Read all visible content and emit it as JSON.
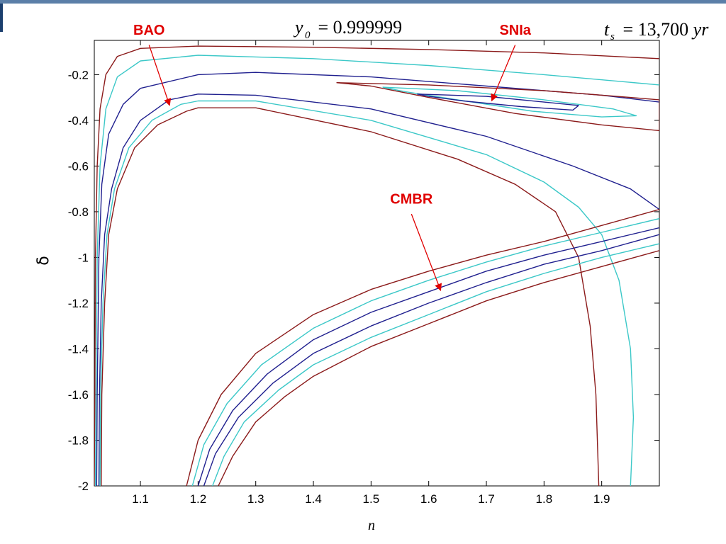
{
  "chart_data": {
    "type": "line",
    "title": "",
    "xlabel": "n",
    "ylabel": "δ",
    "xlim": [
      1.02,
      2.0
    ],
    "ylim": [
      -2.0,
      -0.05
    ],
    "x_ticks": [
      "1.1",
      "1.2",
      "1.3",
      "1.4",
      "1.5",
      "1.6",
      "1.7",
      "1.8",
      "1.9"
    ],
    "y_ticks": [
      "-0.2",
      "-0.4",
      "-0.6",
      "-0.8",
      "-1",
      "-1.2",
      "-1.4",
      "-1.6",
      "-1.8",
      "-2"
    ],
    "grid": false,
    "colors": {
      "outer": "#8b1a1a",
      "middle": "#3cc8c8",
      "inner": "#20208f",
      "annotation": "#e00000"
    },
    "header_equations": [
      {
        "var": "y",
        "sub": "0",
        "rest": " = 0.999999"
      },
      {
        "var": "t",
        "sub": "s",
        "rest": " = 13,700 ",
        "unit": "yr"
      }
    ],
    "annotations": [
      {
        "text": "BAO",
        "label_at": [
          1.115,
          -0.05
        ],
        "arrow_from": [
          1.115,
          -0.07
        ],
        "arrow_to": [
          1.15,
          -0.33
        ]
      },
      {
        "text": "SNIa",
        "label_at": [
          1.75,
          -0.05
        ],
        "arrow_from": [
          1.75,
          -0.07
        ],
        "arrow_to": [
          1.71,
          -0.31
        ]
      },
      {
        "text": "CMBR",
        "label_at": [
          1.57,
          -0.79
        ],
        "arrow_from": [
          1.57,
          -0.81
        ],
        "arrow_to": [
          1.62,
          -1.14
        ]
      }
    ],
    "series": [
      {
        "group": "BAO",
        "level": "outer",
        "points": [
          [
            1.02,
            -2.0
          ],
          [
            1.021,
            -1.6
          ],
          [
            1.022,
            -1.0
          ],
          [
            1.025,
            -0.6
          ],
          [
            1.03,
            -0.35
          ],
          [
            1.04,
            -0.2
          ],
          [
            1.06,
            -0.12
          ],
          [
            1.1,
            -0.085
          ],
          [
            1.2,
            -0.075
          ],
          [
            1.4,
            -0.08
          ],
          [
            1.6,
            -0.09
          ],
          [
            1.8,
            -0.105
          ],
          [
            2.0,
            -0.13
          ]
        ]
      },
      {
        "group": "BAO",
        "level": "middle",
        "points": [
          [
            1.022,
            -2.0
          ],
          [
            1.023,
            -1.6
          ],
          [
            1.025,
            -1.0
          ],
          [
            1.03,
            -0.6
          ],
          [
            1.04,
            -0.35
          ],
          [
            1.06,
            -0.21
          ],
          [
            1.1,
            -0.14
          ],
          [
            1.2,
            -0.115
          ],
          [
            1.4,
            -0.13
          ],
          [
            1.6,
            -0.16
          ],
          [
            1.8,
            -0.2
          ],
          [
            2.0,
            -0.245
          ]
        ]
      },
      {
        "group": "BAO",
        "level": "inner",
        "points": [
          [
            1.024,
            -2.0
          ],
          [
            1.025,
            -1.6
          ],
          [
            1.028,
            -1.0
          ],
          [
            1.033,
            -0.68
          ],
          [
            1.045,
            -0.46
          ],
          [
            1.07,
            -0.33
          ],
          [
            1.1,
            -0.26
          ],
          [
            1.2,
            -0.2
          ],
          [
            1.3,
            -0.19
          ],
          [
            1.5,
            -0.21
          ],
          [
            1.7,
            -0.25
          ],
          [
            1.9,
            -0.29
          ],
          [
            2.0,
            -0.32
          ]
        ]
      },
      {
        "group": "BAO",
        "level": "inner",
        "points": [
          [
            1.028,
            -2.0
          ],
          [
            1.029,
            -1.6
          ],
          [
            1.032,
            -1.2
          ],
          [
            1.038,
            -0.9
          ],
          [
            1.05,
            -0.7
          ],
          [
            1.07,
            -0.52
          ],
          [
            1.1,
            -0.4
          ],
          [
            1.15,
            -0.31
          ],
          [
            1.2,
            -0.285
          ],
          [
            1.3,
            -0.29
          ],
          [
            1.5,
            -0.35
          ],
          [
            1.7,
            -0.47
          ],
          [
            1.85,
            -0.6
          ],
          [
            1.95,
            -0.7
          ],
          [
            2.0,
            -0.79
          ]
        ]
      },
      {
        "group": "BAO",
        "level": "middle",
        "points": [
          [
            1.03,
            -2.0
          ],
          [
            1.031,
            -1.6
          ],
          [
            1.035,
            -1.2
          ],
          [
            1.042,
            -0.9
          ],
          [
            1.055,
            -0.7
          ],
          [
            1.08,
            -0.52
          ],
          [
            1.12,
            -0.4
          ],
          [
            1.17,
            -0.33
          ],
          [
            1.2,
            -0.315
          ],
          [
            1.3,
            -0.315
          ],
          [
            1.5,
            -0.4
          ],
          [
            1.7,
            -0.55
          ],
          [
            1.8,
            -0.67
          ],
          [
            1.86,
            -0.78
          ],
          [
            1.9,
            -0.9
          ],
          [
            1.93,
            -1.1
          ],
          [
            1.95,
            -1.4
          ],
          [
            1.955,
            -1.7
          ],
          [
            1.95,
            -2.0
          ]
        ]
      },
      {
        "group": "BAO",
        "level": "outer",
        "points": [
          [
            1.032,
            -2.0
          ],
          [
            1.033,
            -1.6
          ],
          [
            1.038,
            -1.2
          ],
          [
            1.045,
            -0.9
          ],
          [
            1.06,
            -0.7
          ],
          [
            1.09,
            -0.52
          ],
          [
            1.13,
            -0.42
          ],
          [
            1.18,
            -0.36
          ],
          [
            1.2,
            -0.345
          ],
          [
            1.3,
            -0.345
          ],
          [
            1.5,
            -0.45
          ],
          [
            1.65,
            -0.57
          ],
          [
            1.75,
            -0.68
          ],
          [
            1.82,
            -0.8
          ],
          [
            1.86,
            -1.0
          ],
          [
            1.88,
            -1.3
          ],
          [
            1.89,
            -1.6
          ],
          [
            1.895,
            -2.0
          ]
        ]
      },
      {
        "group": "SNIa",
        "level": "outer",
        "points": [
          [
            1.44,
            -0.235
          ],
          [
            1.6,
            -0.245
          ],
          [
            1.8,
            -0.27
          ],
          [
            1.95,
            -0.3
          ],
          [
            2.0,
            -0.31
          ],
          [
            2.0,
            -0.445
          ],
          [
            1.9,
            -0.42
          ],
          [
            1.75,
            -0.37
          ],
          [
            1.6,
            -0.3
          ],
          [
            1.5,
            -0.25
          ],
          [
            1.44,
            -0.235
          ]
        ]
      },
      {
        "group": "SNIa",
        "level": "middle",
        "points": [
          [
            1.52,
            -0.255
          ],
          [
            1.65,
            -0.27
          ],
          [
            1.8,
            -0.31
          ],
          [
            1.92,
            -0.35
          ],
          [
            1.96,
            -0.38
          ],
          [
            1.9,
            -0.385
          ],
          [
            1.78,
            -0.36
          ],
          [
            1.65,
            -0.31
          ],
          [
            1.56,
            -0.275
          ],
          [
            1.52,
            -0.255
          ]
        ]
      },
      {
        "group": "SNIa",
        "level": "inner",
        "points": [
          [
            1.58,
            -0.285
          ],
          [
            1.7,
            -0.295
          ],
          [
            1.8,
            -0.32
          ],
          [
            1.86,
            -0.335
          ],
          [
            1.85,
            -0.355
          ],
          [
            1.76,
            -0.34
          ],
          [
            1.66,
            -0.315
          ],
          [
            1.6,
            -0.295
          ],
          [
            1.58,
            -0.285
          ]
        ]
      },
      {
        "group": "CMBR",
        "level": "outer",
        "points": [
          [
            1.18,
            -2.0
          ],
          [
            1.2,
            -1.8
          ],
          [
            1.24,
            -1.6
          ],
          [
            1.3,
            -1.42
          ],
          [
            1.4,
            -1.25
          ],
          [
            1.5,
            -1.14
          ],
          [
            1.6,
            -1.06
          ],
          [
            1.7,
            -0.99
          ],
          [
            1.8,
            -0.93
          ],
          [
            1.9,
            -0.86
          ],
          [
            2.0,
            -0.79
          ]
        ]
      },
      {
        "group": "CMBR",
        "level": "middle",
        "points": [
          [
            1.19,
            -2.0
          ],
          [
            1.21,
            -1.82
          ],
          [
            1.25,
            -1.64
          ],
          [
            1.31,
            -1.47
          ],
          [
            1.4,
            -1.31
          ],
          [
            1.5,
            -1.19
          ],
          [
            1.6,
            -1.1
          ],
          [
            1.7,
            -1.02
          ],
          [
            1.8,
            -0.95
          ],
          [
            1.9,
            -0.89
          ],
          [
            2.0,
            -0.83
          ]
        ]
      },
      {
        "group": "CMBR",
        "level": "inner",
        "points": [
          [
            1.2,
            -2.0
          ],
          [
            1.22,
            -1.84
          ],
          [
            1.26,
            -1.67
          ],
          [
            1.32,
            -1.51
          ],
          [
            1.4,
            -1.36
          ],
          [
            1.5,
            -1.24
          ],
          [
            1.6,
            -1.15
          ],
          [
            1.7,
            -1.06
          ],
          [
            1.8,
            -0.99
          ],
          [
            1.9,
            -0.93
          ],
          [
            2.0,
            -0.87
          ]
        ]
      },
      {
        "group": "CMBR",
        "level": "inner",
        "points": [
          [
            1.21,
            -2.0
          ],
          [
            1.23,
            -1.86
          ],
          [
            1.27,
            -1.7
          ],
          [
            1.33,
            -1.55
          ],
          [
            1.4,
            -1.42
          ],
          [
            1.5,
            -1.3
          ],
          [
            1.6,
            -1.2
          ],
          [
            1.7,
            -1.11
          ],
          [
            1.8,
            -1.03
          ],
          [
            1.9,
            -0.97
          ],
          [
            2.0,
            -0.9
          ]
        ]
      },
      {
        "group": "CMBR",
        "level": "middle",
        "points": [
          [
            1.225,
            -2.0
          ],
          [
            1.245,
            -1.87
          ],
          [
            1.28,
            -1.72
          ],
          [
            1.34,
            -1.58
          ],
          [
            1.4,
            -1.47
          ],
          [
            1.5,
            -1.35
          ],
          [
            1.6,
            -1.25
          ],
          [
            1.7,
            -1.15
          ],
          [
            1.8,
            -1.07
          ],
          [
            1.9,
            -1.0
          ],
          [
            2.0,
            -0.94
          ]
        ]
      },
      {
        "group": "CMBR",
        "level": "outer",
        "points": [
          [
            1.235,
            -2.0
          ],
          [
            1.26,
            -1.87
          ],
          [
            1.3,
            -1.72
          ],
          [
            1.35,
            -1.61
          ],
          [
            1.4,
            -1.52
          ],
          [
            1.5,
            -1.39
          ],
          [
            1.6,
            -1.29
          ],
          [
            1.7,
            -1.19
          ],
          [
            1.8,
            -1.11
          ],
          [
            1.9,
            -1.04
          ],
          [
            2.0,
            -0.97
          ]
        ]
      }
    ]
  }
}
